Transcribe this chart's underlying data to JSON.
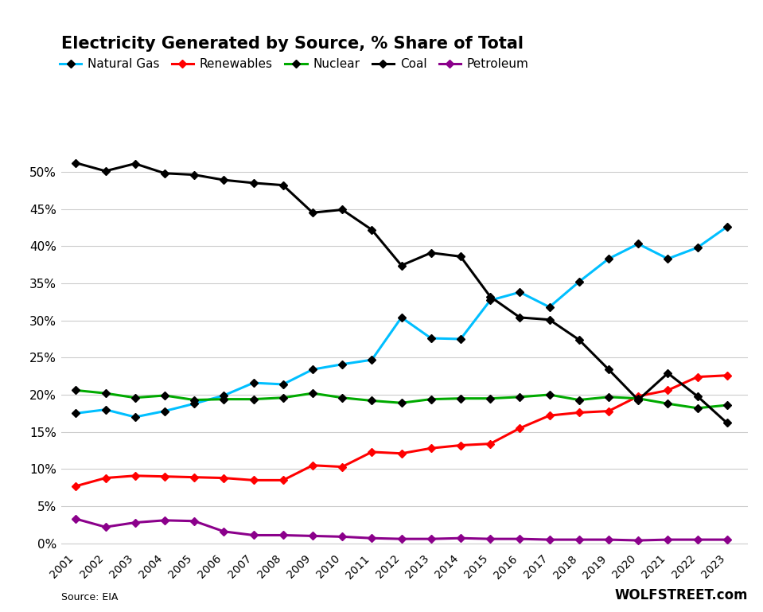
{
  "title": "Electricity Generated by Source, % Share of Total",
  "years": [
    2001,
    2002,
    2003,
    2004,
    2005,
    2006,
    2007,
    2008,
    2009,
    2010,
    2011,
    2012,
    2013,
    2014,
    2015,
    2016,
    2017,
    2018,
    2019,
    2020,
    2021,
    2022,
    2023
  ],
  "natural_gas": [
    17.5,
    18.0,
    17.0,
    17.8,
    18.8,
    19.9,
    21.6,
    21.4,
    23.4,
    24.1,
    24.7,
    30.4,
    27.6,
    27.5,
    32.7,
    33.8,
    31.8,
    35.2,
    38.3,
    40.3,
    38.3,
    39.8,
    42.6
  ],
  "renewables": [
    7.7,
    8.8,
    9.1,
    9.0,
    8.9,
    8.8,
    8.5,
    8.5,
    10.5,
    10.3,
    12.3,
    12.1,
    12.8,
    13.2,
    13.4,
    15.5,
    17.2,
    17.6,
    17.8,
    19.8,
    20.6,
    22.4,
    22.6
  ],
  "nuclear": [
    20.6,
    20.2,
    19.6,
    19.9,
    19.3,
    19.4,
    19.4,
    19.6,
    20.2,
    19.6,
    19.2,
    18.9,
    19.4,
    19.5,
    19.5,
    19.7,
    20.0,
    19.3,
    19.7,
    19.5,
    18.8,
    18.2,
    18.6
  ],
  "coal": [
    51.2,
    50.1,
    51.1,
    49.8,
    49.6,
    48.9,
    48.5,
    48.2,
    44.5,
    44.9,
    42.2,
    37.4,
    39.1,
    38.6,
    33.2,
    30.4,
    30.1,
    27.4,
    23.4,
    19.3,
    22.9,
    19.8,
    16.2
  ],
  "petroleum": [
    3.3,
    2.2,
    2.8,
    3.1,
    3.0,
    1.6,
    1.1,
    1.1,
    1.0,
    0.9,
    0.7,
    0.6,
    0.6,
    0.7,
    0.6,
    0.6,
    0.5,
    0.5,
    0.5,
    0.4,
    0.5,
    0.5,
    0.5
  ],
  "series": [
    {
      "name": "Natural Gas",
      "color": "#00BFFF",
      "marker_color": "#000000"
    },
    {
      "name": "Renewables",
      "color": "#FF0000",
      "marker_color": "#FF0000"
    },
    {
      "name": "Nuclear",
      "color": "#00AA00",
      "marker_color": "#000000"
    },
    {
      "name": "Coal",
      "color": "#000000",
      "marker_color": "#000000"
    },
    {
      "name": "Petroleum",
      "color": "#8B008B",
      "marker_color": "#8B008B"
    }
  ],
  "source_text": "Source: EIA",
  "watermark": "WOLFSTREET.com",
  "ylim": [
    -1,
    55
  ],
  "yticks": [
    0,
    5,
    10,
    15,
    20,
    25,
    30,
    35,
    40,
    45,
    50
  ],
  "background_color": "#FFFFFF",
  "grid_color": "#CCCCCC"
}
